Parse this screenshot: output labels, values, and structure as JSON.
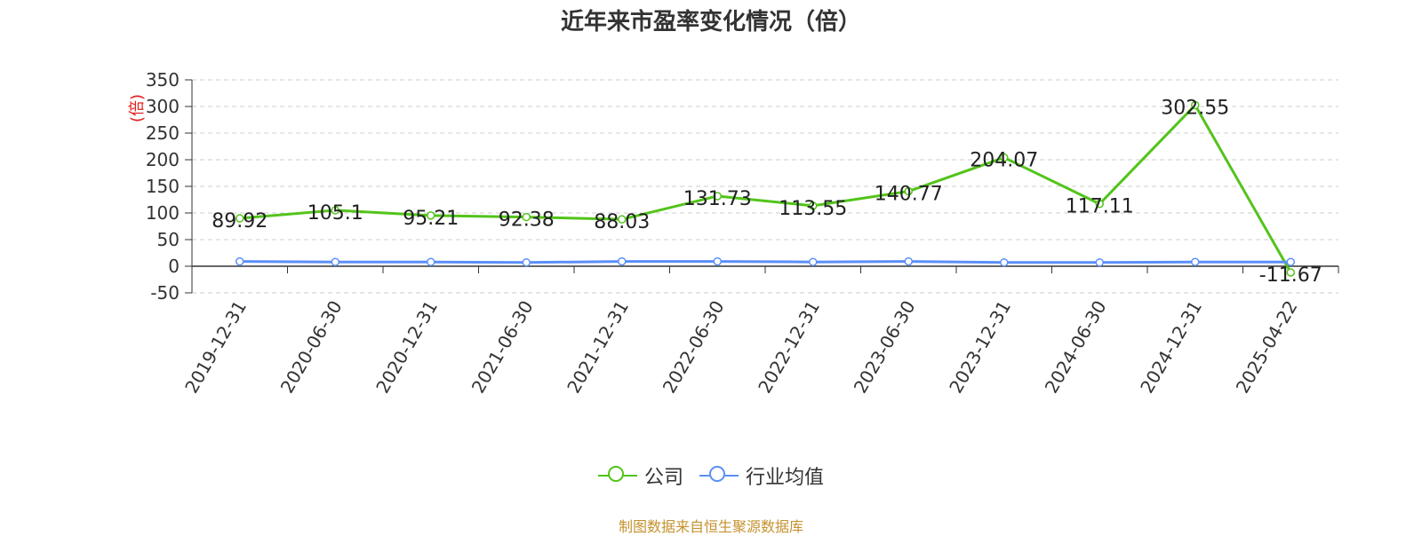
{
  "title": "近年来市盈率变化情况（倍）",
  "footer": "制图数据来自恒生聚源数据库",
  "colors": {
    "company": "#52c41a",
    "industry": "#5b8ff9",
    "ylabel": "#e02020",
    "grid": "#cccccc",
    "axis": "#333333"
  },
  "chart_data": {
    "type": "line",
    "title": "近年来市盈率变化情况（倍）",
    "ylabel": "(倍)",
    "xlabel": "",
    "ylim": [
      -50,
      350
    ],
    "yticks": [
      -50,
      0,
      50,
      100,
      150,
      200,
      250,
      300,
      350
    ],
    "grid": true,
    "legend_position": "bottom",
    "categories": [
      "2019-12-31",
      "2020-06-30",
      "2020-12-31",
      "2021-06-30",
      "2021-12-31",
      "2022-06-30",
      "2022-12-31",
      "2023-06-30",
      "2023-12-31",
      "2024-06-30",
      "2024-12-31",
      "2025-04-22"
    ],
    "series": [
      {
        "name": "公司",
        "color": "#52c41a",
        "values": [
          89.92,
          105.1,
          95.21,
          92.38,
          88.03,
          131.73,
          113.55,
          140.77,
          204.07,
          117.11,
          302.55,
          -11.67
        ],
        "labels": [
          "89.92",
          "105.1",
          "95.21",
          "92.38",
          "88.03",
          "131.73",
          "113.55",
          "140.77",
          "204.07",
          "117.11",
          "302.55",
          "-11.67"
        ]
      },
      {
        "name": "行业均值",
        "color": "#5b8ff9",
        "values": [
          9,
          8,
          8,
          7,
          9,
          9,
          8,
          9,
          7,
          7,
          8,
          8
        ]
      }
    ]
  }
}
